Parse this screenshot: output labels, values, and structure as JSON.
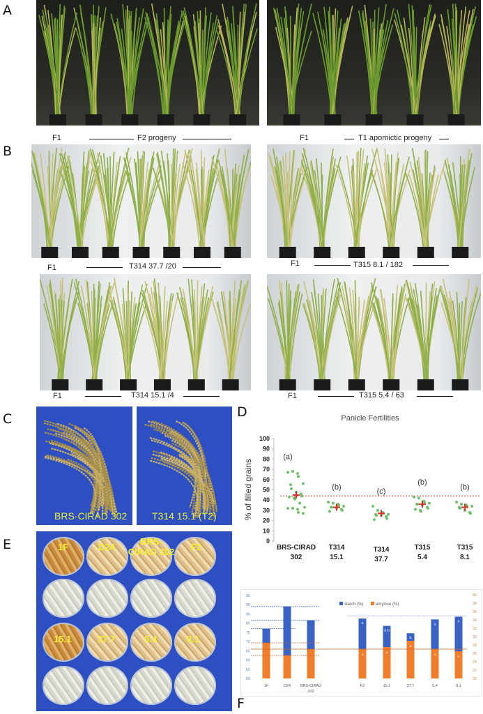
{
  "panels": {
    "a": {
      "label": "A",
      "left_caption_f1": "F1",
      "left_caption_group": "F2 progeny",
      "right_caption_f1": "F1",
      "right_caption_group": "T1 apomictic progeny"
    },
    "b": {
      "label": "B",
      "top_left": {
        "f1": "F1",
        "group": "T314 37.7 /20"
      },
      "top_right": {
        "f1": "F1",
        "group": "T315 8.1 / 182"
      },
      "bottom_left": {
        "f1": "F1",
        "group": "T314 15.1 /4"
      },
      "bottom_right": {
        "f1": "F1",
        "group": "T315 5.4 /  63"
      }
    },
    "c": {
      "label": "C",
      "left_photo_label": "BRS-CIRAD 302",
      "right_photo_label": "T314 15.1 (T2)"
    },
    "d": {
      "label": "D"
    },
    "e": {
      "label": "E",
      "dish_labels": [
        "1F",
        "D24",
        "BRS-CIRAD 302",
        "F2",
        "15.1",
        "37.7",
        "5.4",
        "8.1"
      ]
    },
    "f": {
      "label": "F"
    }
  },
  "chart_data": [
    {
      "type": "scatter",
      "title": "Panicle Fertilities",
      "ylabel": "% of filled grains",
      "ylim": [
        0,
        100
      ],
      "yticks": [
        0,
        10,
        20,
        30,
        40,
        50,
        60,
        70,
        80,
        90,
        100
      ],
      "categories": [
        [
          "BRS-CIRAD",
          "302"
        ],
        [
          "T314",
          "15.1"
        ],
        [
          "T314",
          "37.7"
        ],
        [
          "T315",
          "5.4"
        ],
        [
          "T315",
          "8.1"
        ]
      ],
      "significance_letters": [
        "(a)",
        "(b)",
        "(c)",
        "(b)",
        "(b)"
      ],
      "reference_line": 44,
      "point_color": "#6fbf6a",
      "mean_color": "#d9332b",
      "series": [
        {
          "values": [
            67,
            68,
            66,
            63,
            56,
            55,
            51,
            48,
            46,
            44,
            43,
            42,
            41,
            37,
            33,
            32,
            32,
            31,
            28,
            27
          ],
          "mean": 45
        },
        {
          "values": [
            38,
            37,
            36,
            35,
            34,
            33,
            33,
            32,
            31,
            30,
            29
          ],
          "mean": 33
        },
        {
          "values": [
            34,
            30,
            28,
            27,
            26,
            26,
            25,
            25,
            24,
            22,
            21
          ],
          "mean": 27
        },
        {
          "values": [
            43,
            42,
            39,
            38,
            37,
            36,
            36,
            35,
            33,
            32,
            31,
            30,
            29
          ],
          "mean": 36
        },
        {
          "values": [
            38,
            36,
            35,
            34,
            34,
            33,
            32,
            30,
            28,
            27
          ],
          "mean": 33
        }
      ]
    },
    {
      "type": "bar",
      "categories": [
        [
          "1F"
        ],
        [
          "D24"
        ],
        [
          "BRS-CIRAD",
          "302"
        ],
        [
          "F2"
        ],
        [
          "15.1"
        ],
        [
          "37.7"
        ],
        [
          "5.4"
        ],
        [
          "8.1"
        ]
      ],
      "ylim_left": [
        50,
        95
      ],
      "yticks_left": [
        50,
        55,
        60,
        65,
        70,
        75,
        80,
        85,
        90,
        95
      ],
      "ylim_right": [
        20,
        40
      ],
      "yticks_right": [
        20,
        22,
        24,
        26,
        28,
        30,
        32,
        34,
        36,
        38,
        40
      ],
      "series": [
        {
          "name": "starch (%)",
          "axis": "left",
          "color": "#3a62c4",
          "values": [
            77,
            89,
            81.5,
            82.5,
            78.5,
            74.5,
            82,
            83.5
          ],
          "letters": [
            "",
            "",
            "",
            "a",
            "a,b",
            "b",
            "a",
            "a"
          ]
        },
        {
          "name": "amylose (%)",
          "axis": "right",
          "color": "#ef7d2c",
          "values": [
            28.5,
            25.5,
            27,
            27,
            27.5,
            29,
            27,
            26.5
          ],
          "letters": [
            "",
            "",
            "",
            "a",
            "a",
            "a",
            "a",
            "a"
          ]
        }
      ],
      "reference_lines": [
        {
          "axis": "left",
          "value": 89,
          "from": 0,
          "to": 2,
          "color": "#3a62c4"
        },
        {
          "axis": "left",
          "value": 81.5,
          "from": 0,
          "to": 2,
          "color": "#3a62c4"
        },
        {
          "axis": "left",
          "value": 77,
          "from": 0,
          "to": 1,
          "color": "#3a62c4"
        },
        {
          "axis": "left",
          "value": 84,
          "from": 3,
          "to": 7,
          "color": "#8ea3d8"
        },
        {
          "axis": "right",
          "value": 28.5,
          "from": 0,
          "to": 2,
          "color": "#c9692a"
        },
        {
          "axis": "right",
          "value": 25.5,
          "from": 0,
          "to": 2,
          "color": "#c9692a"
        },
        {
          "axis": "right",
          "value": 27,
          "from": 0,
          "to": 7,
          "color": "#c9692a"
        }
      ]
    }
  ]
}
